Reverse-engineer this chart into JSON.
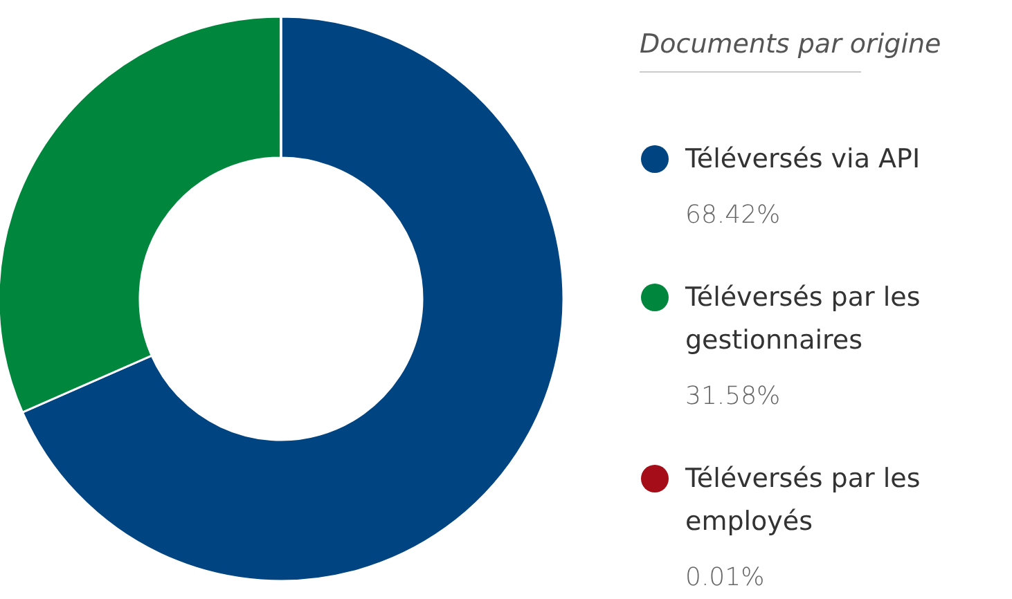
{
  "chart_data": {
    "type": "donut",
    "legend_title": "Documents par origine",
    "categories": [
      "Téléversés via API",
      "Téléversés par les gestionnaires",
      "Téléversés par les employés"
    ],
    "values": [
      68.42,
      31.58,
      0.01
    ],
    "colors": [
      "#004481",
      "#00873d",
      "#a50d18"
    ],
    "value_labels": [
      "68.42%",
      "31.58%",
      "0.01%"
    ],
    "legend": "right"
  }
}
